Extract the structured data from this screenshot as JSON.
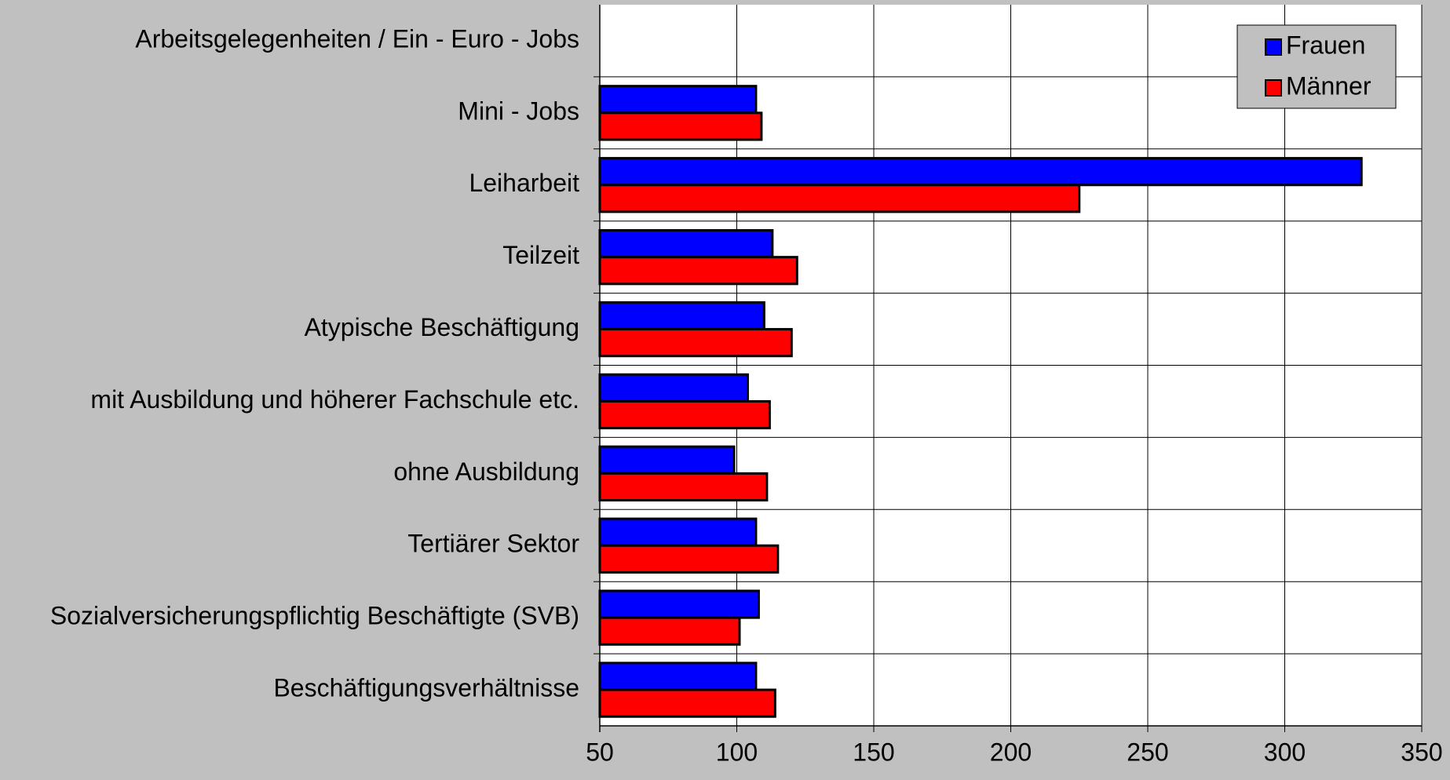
{
  "chart_data": {
    "type": "barh",
    "categories": [
      "Arbeitsgelegenheiten / Ein - Euro - Jobs",
      "Mini - Jobs",
      "Leiharbeit",
      "Teilzeit",
      "Atypische Beschäftigung",
      "mit Ausbildung und höherer Fachschule etc.",
      "ohne Ausbildung",
      "Tertiärer Sektor",
      "Sozialversicherungspflichtig Beschäftigte (SVB)",
      "Beschäftigungsverhältnisse"
    ],
    "series": [
      {
        "name": "Frauen",
        "color": "#0000ff",
        "values": [
          null,
          107,
          328,
          113,
          110,
          104,
          99,
          107,
          108,
          107
        ]
      },
      {
        "name": "Männer",
        "color": "#ff0000",
        "values": [
          null,
          109,
          225,
          122,
          120,
          112,
          111,
          115,
          101,
          114
        ]
      }
    ],
    "xlim": [
      50,
      350
    ],
    "xticks": [
      50,
      100,
      150,
      200,
      250,
      300,
      350
    ],
    "grid": true,
    "legend": "upper right"
  }
}
